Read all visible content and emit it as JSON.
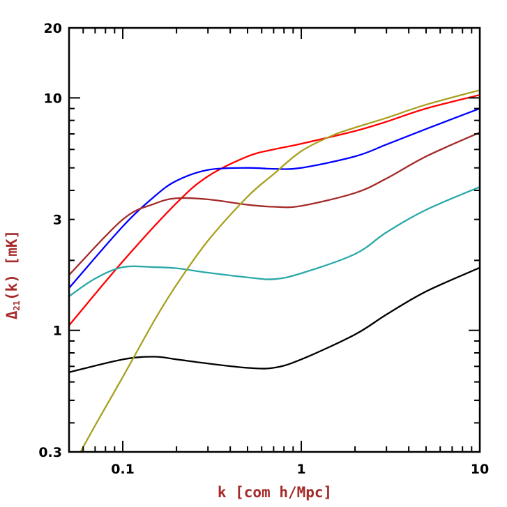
{
  "chart_data": {
    "type": "line",
    "title": "",
    "xlabel": "k [com h/Mpc]",
    "ylabel_main": "Δ",
    "ylabel_sub": "21",
    "ylabel_rest": "(k) [mK]",
    "label_color": "#a52a2a",
    "xscale": "log",
    "yscale": "log",
    "xlim": [
      0.05,
      10
    ],
    "ylim": [
      0.3,
      20
    ],
    "grid": false,
    "legend": "none",
    "xticks": [
      {
        "value": 0.1,
        "label": "0.1"
      },
      {
        "value": 1,
        "label": "1"
      },
      {
        "value": 10,
        "label": "10"
      }
    ],
    "yticks": [
      {
        "value": 0.3,
        "label": "0.3"
      },
      {
        "value": 1,
        "label": "1"
      },
      {
        "value": 3,
        "label": "3"
      },
      {
        "value": 10,
        "label": "10"
      },
      {
        "value": 20,
        "label": "20"
      }
    ],
    "series": [
      {
        "color": "#ff0000",
        "x": [
          0.05,
          0.1,
          0.2,
          0.3,
          0.5,
          0.7,
          1,
          2,
          3,
          5,
          10
        ],
        "y": [
          1.05,
          1.98,
          3.53,
          4.6,
          5.6,
          6.0,
          6.35,
          7.2,
          7.9,
          9.0,
          10.3
        ]
      },
      {
        "color": "#0000ff",
        "x": [
          0.05,
          0.1,
          0.15,
          0.2,
          0.3,
          0.5,
          0.7,
          1,
          2,
          3,
          5,
          10
        ],
        "y": [
          1.52,
          2.8,
          3.76,
          4.4,
          4.9,
          5.0,
          4.95,
          5.0,
          5.6,
          6.3,
          7.35,
          9.0
        ]
      },
      {
        "color": "#a52a2a",
        "x": [
          0.05,
          0.1,
          0.15,
          0.2,
          0.3,
          0.5,
          0.7,
          1,
          2,
          3,
          5,
          10
        ],
        "y": [
          1.73,
          3.0,
          3.5,
          3.7,
          3.66,
          3.47,
          3.4,
          3.43,
          3.9,
          4.5,
          5.6,
          7.1
        ]
      },
      {
        "color": "#2aa8a8",
        "x": [
          0.05,
          0.07,
          0.1,
          0.15,
          0.2,
          0.3,
          0.5,
          0.7,
          1,
          2,
          3,
          5,
          10
        ],
        "y": [
          1.4,
          1.67,
          1.87,
          1.87,
          1.85,
          1.77,
          1.69,
          1.66,
          1.76,
          2.13,
          2.64,
          3.3,
          4.14
        ]
      },
      {
        "color": "#000000",
        "x": [
          0.05,
          0.1,
          0.15,
          0.2,
          0.3,
          0.5,
          0.7,
          1,
          2,
          3,
          5,
          10
        ],
        "y": [
          0.66,
          0.75,
          0.77,
          0.75,
          0.72,
          0.69,
          0.69,
          0.75,
          0.96,
          1.17,
          1.47,
          1.86
        ]
      },
      {
        "color": "#a8a020",
        "x": [
          0.058,
          0.07,
          0.1,
          0.15,
          0.2,
          0.3,
          0.5,
          0.7,
          1,
          1.5,
          2,
          3,
          5,
          10
        ],
        "y": [
          0.3,
          0.39,
          0.63,
          1.1,
          1.57,
          2.43,
          3.76,
          4.7,
          5.9,
          6.9,
          7.45,
          8.2,
          9.35,
          10.8
        ]
      }
    ]
  }
}
